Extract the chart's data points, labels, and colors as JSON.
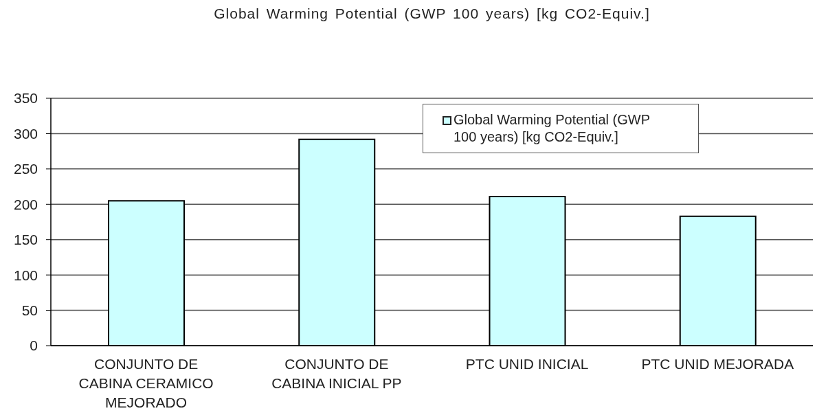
{
  "chart_data": {
    "type": "bar",
    "title": "Global Warming Potential (GWP 100 years) [kg CO2-Equiv.]",
    "categories": [
      "CONJUNTO DE CABINA CERAMICO MEJORADO",
      "CONJUNTO DE CABINA INICIAL PP",
      "PTC UNID INICIAL",
      "PTC UNID MEJORADA"
    ],
    "series": [
      {
        "name": "Global Warming Potential (GWP 100 years) [kg CO2-Equiv.]",
        "color": "#ccffff",
        "values": [
          205,
          292,
          211,
          183
        ]
      }
    ],
    "ylim": [
      0,
      350
    ],
    "yticks": [
      0,
      50,
      100,
      150,
      200,
      250,
      300,
      350
    ],
    "grid": "y",
    "legend": "top right"
  }
}
